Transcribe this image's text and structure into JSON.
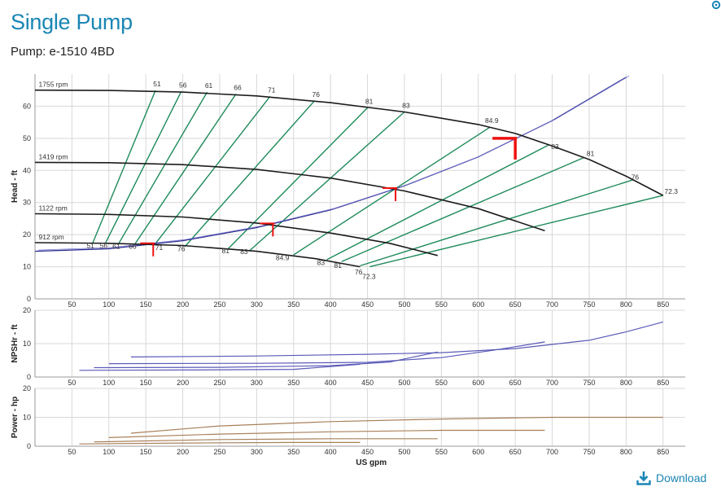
{
  "page": {
    "title": "Single Pump",
    "subtitle": "Pump: e-1510 4BD",
    "download_label": "Download",
    "accent": "#1a86b5"
  },
  "chart_data": [
    {
      "type": "line",
      "panel": "head",
      "ylabel": "Head - ft",
      "xlim": [
        0,
        880
      ],
      "ylim": [
        0,
        70
      ],
      "yticks": [
        0,
        10,
        20,
        30,
        40,
        50,
        60
      ],
      "xticks": [
        50,
        100,
        150,
        200,
        250,
        300,
        350,
        400,
        450,
        500,
        550,
        600,
        650,
        700,
        750,
        800,
        850
      ],
      "grid": true,
      "speed_curves": [
        {
          "name": "1755 rpm",
          "points": [
            [
              0,
              65
            ],
            [
              100,
              64.9
            ],
            [
              200,
              64.4
            ],
            [
              300,
              63.2
            ],
            [
              400,
              61.1
            ],
            [
              500,
              58.2
            ],
            [
              600,
              54.3
            ],
            [
              650,
              51.5
            ],
            [
              700,
              47.6
            ],
            [
              750,
              43.4
            ],
            [
              800,
              38.2
            ],
            [
              850,
              32.2
            ]
          ]
        },
        {
          "name": "1419 rpm",
          "points": [
            [
              0,
              42.5
            ],
            [
              100,
              42.4
            ],
            [
              200,
              41.8
            ],
            [
              300,
              40.3
            ],
            [
              400,
              37.6
            ],
            [
              500,
              33.6
            ],
            [
              600,
              28.1
            ],
            [
              690,
              21.2
            ]
          ]
        },
        {
          "name": "1122 rpm",
          "points": [
            [
              0,
              26.5
            ],
            [
              100,
              26.3
            ],
            [
              200,
              25.5
            ],
            [
              300,
              23.6
            ],
            [
              400,
              20.5
            ],
            [
              480,
              17.3
            ],
            [
              545,
              13.5
            ]
          ]
        },
        {
          "name": "912 rpm",
          "points": [
            [
              0,
              17.5
            ],
            [
              100,
              17.3
            ],
            [
              200,
              16.6
            ],
            [
              300,
              14.8
            ],
            [
              380,
              12.5
            ],
            [
              440,
              10
            ]
          ]
        }
      ],
      "system_curve": [
        [
          0,
          14.8
        ],
        [
          100,
          15.6
        ],
        [
          200,
          18.1
        ],
        [
          300,
          22.2
        ],
        [
          400,
          27.7
        ],
        [
          500,
          35.2
        ],
        [
          600,
          44.2
        ],
        [
          700,
          55.5
        ],
        [
          800,
          69
        ]
      ],
      "efficiency_lines": [
        {
          "label": "51",
          "top": [
            163,
            64.9
          ],
          "bottom": [
            78,
            17.3
          ]
        },
        {
          "label": "56",
          "top": [
            198,
            64.6
          ],
          "bottom": [
            95,
            17.2
          ]
        },
        {
          "label": "61",
          "top": [
            233,
            64.4
          ],
          "bottom": [
            113,
            17.1
          ]
        },
        {
          "label": "66",
          "top": [
            272,
            63.8
          ],
          "bottom": [
            135,
            17
          ]
        },
        {
          "label": "71",
          "top": [
            318,
            63
          ],
          "bottom": [
            162,
            16.9
          ]
        },
        {
          "label": "76",
          "top": [
            378,
            61.6
          ],
          "bottom": [
            203,
            16.3
          ]
        },
        {
          "label": "81",
          "top": [
            450,
            59.5
          ],
          "bottom": [
            261,
            15.5
          ]
        },
        {
          "label": "83",
          "top": [
            500,
            58.2
          ],
          "bottom": [
            290,
            14.9
          ]
        },
        {
          "label": "84.9",
          "top": [
            616,
            53.5
          ],
          "bottom": [
            350,
            13.7
          ]
        },
        {
          "label": "83",
          "top": [
            695,
            47.9
          ],
          "bottom": [
            395,
            12.2
          ]
        },
        {
          "label": "81",
          "top": [
            743,
            44
          ],
          "bottom": [
            415,
            11.6
          ]
        },
        {
          "label": "76",
          "top": [
            810,
            37.1
          ],
          "bottom": [
            440,
            10.3
          ]
        },
        {
          "label": "72.3",
          "top": [
            850,
            32.2
          ],
          "bottom": [
            453,
            10
          ]
        }
      ],
      "speed_labels_bottom": [
        "51",
        "56",
        "61",
        "66",
        "71",
        "76",
        "81",
        "83",
        "84.9",
        "83",
        "81",
        "76",
        "72.3"
      ],
      "operating_points": [
        [
          650,
          50
        ],
        [
          488,
          34.5
        ],
        [
          322,
          23.5
        ],
        [
          160,
          17.3
        ]
      ]
    },
    {
      "type": "line",
      "panel": "npshr",
      "ylabel": "NPSHr - ft",
      "ylim": [
        0,
        20
      ],
      "yticks": [
        0,
        10,
        20
      ],
      "series": [
        {
          "points": [
            [
              130,
              6
            ],
            [
              300,
              6.3
            ],
            [
              450,
              6.8
            ],
            [
              550,
              7.3
            ],
            [
              650,
              8.5
            ],
            [
              750,
              11
            ],
            [
              800,
              13.5
            ],
            [
              850,
              16.5
            ]
          ]
        },
        {
          "points": [
            [
              100,
              4
            ],
            [
              300,
              4.1
            ],
            [
              450,
              4.4
            ],
            [
              550,
              5.8
            ],
            [
              620,
              8
            ],
            [
              690,
              10.5
            ]
          ]
        },
        {
          "points": [
            [
              80,
              2.8
            ],
            [
              250,
              2.9
            ],
            [
              400,
              3.4
            ],
            [
              480,
              4.5
            ],
            [
              545,
              7.5
            ]
          ]
        },
        {
          "points": [
            [
              60,
              2
            ],
            [
              200,
              2.1
            ],
            [
              350,
              2.3
            ],
            [
              440,
              3.8
            ]
          ]
        }
      ]
    },
    {
      "type": "line",
      "panel": "power",
      "ylabel": "Power - hp",
      "xlabel": "US gpm",
      "ylim": [
        0,
        20
      ],
      "yticks": [
        0,
        10,
        20
      ],
      "series": [
        {
          "points": [
            [
              130,
              4.5
            ],
            [
              250,
              7
            ],
            [
              400,
              8.5
            ],
            [
              550,
              9.4
            ],
            [
              700,
              10
            ],
            [
              850,
              10
            ]
          ]
        },
        {
          "points": [
            [
              100,
              3
            ],
            [
              250,
              4.2
            ],
            [
              400,
              5
            ],
            [
              550,
              5.5
            ],
            [
              690,
              5.5
            ]
          ]
        },
        {
          "points": [
            [
              80,
              1.5
            ],
            [
              250,
              2.3
            ],
            [
              400,
              2.6
            ],
            [
              545,
              2.6
            ]
          ]
        },
        {
          "points": [
            [
              60,
              0.8
            ],
            [
              200,
              1.1
            ],
            [
              350,
              1.3
            ],
            [
              440,
              1.3
            ]
          ]
        }
      ]
    }
  ],
  "colors": {
    "speed": "#1c1c1c",
    "efficiency": "#1e8a5a",
    "system": "#2a2a8e",
    "npsh": "#5a5ab8",
    "power": "#a8805a",
    "op": "#ee1111",
    "grid": "#d8d8d8"
  }
}
